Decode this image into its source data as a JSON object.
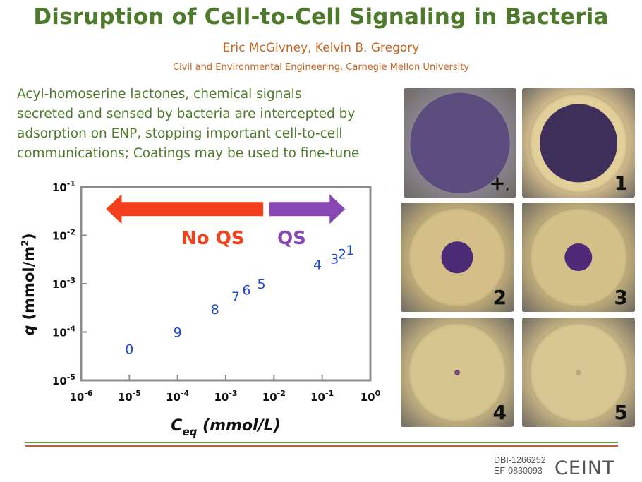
{
  "title": "Disruption of Cell-to-Cell Signaling in Bacteria",
  "authors": "Eric McGivney, Kelvin B. Gregory",
  "affiliation": "Civil and Environmental Engineering, Carnegie Mellon University",
  "intro_lines": [
    "Acyl-homoserine lactones, chemical signals",
    "secreted and sensed by bacteria are intercepted by",
    "adsorption on ENP, stopping important cell-to-cell",
    "communications; Coatings may be used to fine-tune"
  ],
  "chart_data": {
    "type": "scatter",
    "xlabel_main": "C",
    "xlabel_sub": "eq",
    "xlabel_unit": " (mmol/L)",
    "ylabel_main": "q",
    "ylabel_unit": " (mmol/m",
    "ylabel_sup": "2",
    "ylabel_close": ")",
    "x_scale": "log",
    "y_scale": "log",
    "xlim": [
      1e-06,
      1
    ],
    "ylim": [
      1e-05,
      0.1
    ],
    "x_ticks": [
      {
        "base": "10",
        "exp": "-6",
        "value": 1e-06
      },
      {
        "base": "10",
        "exp": "-5",
        "value": 1e-05
      },
      {
        "base": "10",
        "exp": "-4",
        "value": 0.0001
      },
      {
        "base": "10",
        "exp": "-3",
        "value": 0.001
      },
      {
        "base": "10",
        "exp": "-2",
        "value": 0.01
      },
      {
        "base": "10",
        "exp": "-1",
        "value": 0.1
      },
      {
        "base": "10",
        "exp": "0",
        "value": 1
      }
    ],
    "y_ticks": [
      {
        "base": "10",
        "exp": "-5",
        "value": 1e-05
      },
      {
        "base": "10",
        "exp": "-4",
        "value": 0.0001
      },
      {
        "base": "10",
        "exp": "-3",
        "value": 0.001
      },
      {
        "base": "10",
        "exp": "-2",
        "value": 0.01
      },
      {
        "base": "10",
        "exp": "-1",
        "value": 0.1
      }
    ],
    "points": [
      {
        "label": "0",
        "x": 1e-05,
        "y": 4.5e-05
      },
      {
        "label": "9",
        "x": 0.0001,
        "y": 0.0001
      },
      {
        "label": "8",
        "x": 0.0006,
        "y": 0.0003
      },
      {
        "label": "7",
        "x": 0.0016,
        "y": 0.00055
      },
      {
        "label": "6",
        "x": 0.0027,
        "y": 0.00075
      },
      {
        "label": "5",
        "x": 0.0055,
        "y": 0.001
      },
      {
        "label": "4",
        "x": 0.08,
        "y": 0.0025
      },
      {
        "label": "3",
        "x": 0.18,
        "y": 0.0033
      },
      {
        "label": "2",
        "x": 0.26,
        "y": 0.0042
      },
      {
        "label": "1",
        "x": 0.38,
        "y": 0.005
      }
    ],
    "arrows": [
      {
        "label": "No QS",
        "direction": "left",
        "color": "#f2401c",
        "x_from": 0.006,
        "x_to": 3.3e-06,
        "y": 0.035
      },
      {
        "label": "QS",
        "direction": "right",
        "color": "#8848b4",
        "x_from": 0.008,
        "x_to": 0.3,
        "y": 0.035
      }
    ],
    "point_color": "#1f48d6",
    "grid": false
  },
  "plates": [
    {
      "label": "+",
      "comma": ",",
      "bg": "#8a8590",
      "agar": "#4f4370",
      "ring": "#5b4d7d",
      "disk_pct": 100
    },
    {
      "label": "1",
      "bg": "#d9c08f",
      "agar": "#e3cf9a",
      "ring": "#3e2f5a",
      "disk_pct": 78
    },
    {
      "label": "2",
      "bg": "#c3ae7a",
      "agar": "#d3bf87",
      "ring": "#4b2a76",
      "disk_pct": 32
    },
    {
      "label": "3",
      "bg": "#c4b07c",
      "agar": "#d4c18a",
      "ring": "#4e2a78",
      "disk_pct": 28
    },
    {
      "label": "4",
      "bg": "#c7b483",
      "agar": "#d6c58f",
      "ring": "#7a4a6a",
      "disk_pct": 4
    },
    {
      "label": "5",
      "bg": "#c9b785",
      "agar": "#d8c793",
      "ring": "#b9aa7a",
      "disk_pct": 2
    }
  ],
  "grants": [
    "DBI-1266252",
    "EF-0830093"
  ],
  "logo_text": "CEINT"
}
